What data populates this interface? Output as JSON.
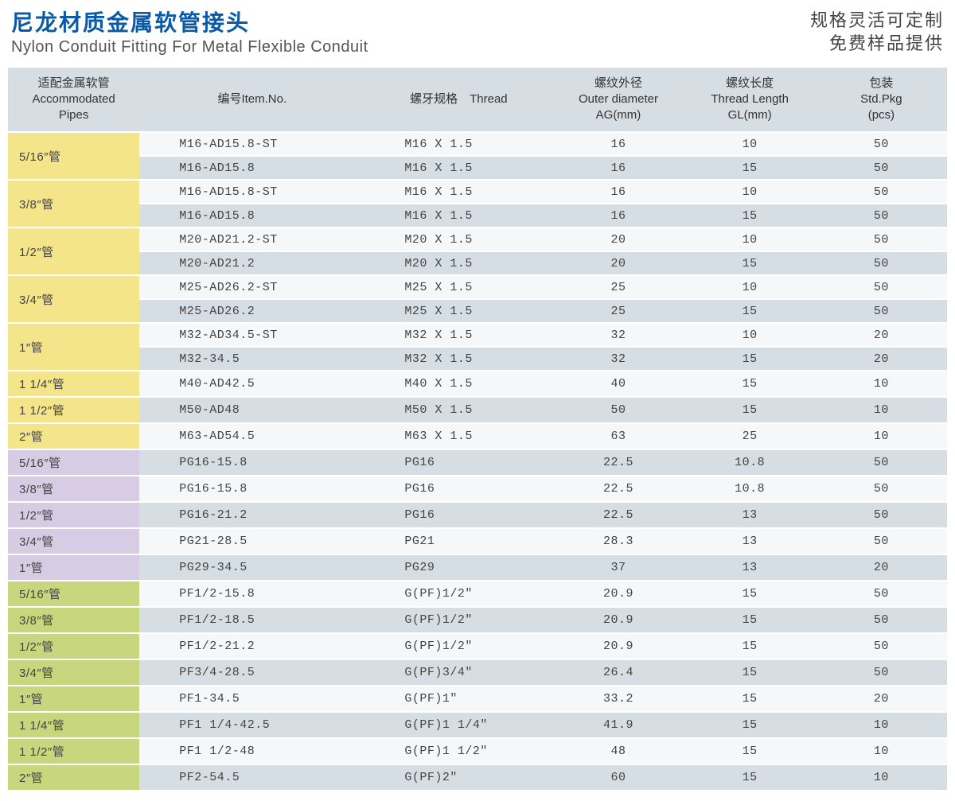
{
  "header": {
    "title_cn": "尼龙材质金属软管接头",
    "title_en": "Nylon Conduit Fitting For Metal Flexible Conduit",
    "promo_line1": "规格灵活可定制",
    "promo_line2": "免费样品提供"
  },
  "colors": {
    "yellow": "#f4e58a",
    "purple": "#d7cce4",
    "green": "#c8d77e",
    "grey_even": "#d6dde3",
    "grey_odd": "#f5f7f8"
  },
  "columns": [
    {
      "cn": "适配金属软管",
      "en": "Accommodated<br>Pipes"
    },
    {
      "cn": "编号Item.No.",
      "en": ""
    },
    {
      "cn": "螺牙规格　Thread",
      "en": ""
    },
    {
      "cn": "螺纹外径",
      "en": "Outer diameter<br>AG(mm)"
    },
    {
      "cn": "螺纹长度",
      "en": "Thread Length<br>GL(mm)"
    },
    {
      "cn": "包装",
      "en": "Std.Pkg<br>(pcs)"
    }
  ],
  "groups": [
    {
      "color": "yellow",
      "pipe": "5/16″管",
      "rows": [
        {
          "item": "M16-AD15.8-ST",
          "thread": "M16 X 1.5",
          "od": "16",
          "tl": "10",
          "pkg": "50"
        },
        {
          "item": "M16-AD15.8",
          "thread": "M16 X 1.5",
          "od": "16",
          "tl": "15",
          "pkg": "50"
        }
      ]
    },
    {
      "color": "yellow",
      "pipe": "3/8″管",
      "rows": [
        {
          "item": "M16-AD15.8-ST",
          "thread": "M16 X 1.5",
          "od": "16",
          "tl": "10",
          "pkg": "50"
        },
        {
          "item": "M16-AD15.8",
          "thread": "M16 X 1.5",
          "od": "16",
          "tl": "15",
          "pkg": "50"
        }
      ]
    },
    {
      "color": "yellow",
      "pipe": "1/2″管",
      "rows": [
        {
          "item": "M20-AD21.2-ST",
          "thread": "M20 X 1.5",
          "od": "20",
          "tl": "10",
          "pkg": "50"
        },
        {
          "item": "M20-AD21.2",
          "thread": "M20 X 1.5",
          "od": "20",
          "tl": "15",
          "pkg": "50"
        }
      ]
    },
    {
      "color": "yellow",
      "pipe": "3/4″管",
      "rows": [
        {
          "item": "M25-AD26.2-ST",
          "thread": "M25 X 1.5",
          "od": "25",
          "tl": "10",
          "pkg": "50"
        },
        {
          "item": "M25-AD26.2",
          "thread": "M25 X 1.5",
          "od": "25",
          "tl": "15",
          "pkg": "50"
        }
      ]
    },
    {
      "color": "yellow",
      "pipe": "1″管",
      "rows": [
        {
          "item": "M32-AD34.5-ST",
          "thread": "M32 X 1.5",
          "od": "32",
          "tl": "10",
          "pkg": "20"
        },
        {
          "item": "M32-34.5",
          "thread": "M32 X 1.5",
          "od": "32",
          "tl": "15",
          "pkg": "20"
        }
      ]
    },
    {
      "color": "yellow",
      "pipe": "1 1/4″管",
      "rows": [
        {
          "item": "M40-AD42.5",
          "thread": "M40 X 1.5",
          "od": "40",
          "tl": "15",
          "pkg": "10"
        }
      ]
    },
    {
      "color": "yellow",
      "pipe": "1 1/2″管",
      "rows": [
        {
          "item": "M50-AD48",
          "thread": "M50 X 1.5",
          "od": "50",
          "tl": "15",
          "pkg": "10"
        }
      ]
    },
    {
      "color": "yellow",
      "pipe": "2″管",
      "rows": [
        {
          "item": "M63-AD54.5",
          "thread": "M63 X 1.5",
          "od": "63",
          "tl": "25",
          "pkg": "10"
        }
      ]
    },
    {
      "color": "purple",
      "pipe": "5/16″管",
      "rows": [
        {
          "item": "PG16-15.8",
          "thread": "PG16",
          "od": "22.5",
          "tl": "10.8",
          "pkg": "50"
        }
      ]
    },
    {
      "color": "purple",
      "pipe": "3/8″管",
      "rows": [
        {
          "item": "PG16-15.8",
          "thread": "PG16",
          "od": "22.5",
          "tl": "10.8",
          "pkg": "50"
        }
      ]
    },
    {
      "color": "purple",
      "pipe": "1/2″管",
      "rows": [
        {
          "item": "PG16-21.2",
          "thread": "PG16",
          "od": "22.5",
          "tl": "13",
          "pkg": "50"
        }
      ]
    },
    {
      "color": "purple",
      "pipe": "3/4″管",
      "rows": [
        {
          "item": "PG21-28.5",
          "thread": "PG21",
          "od": "28.3",
          "tl": "13",
          "pkg": "50"
        }
      ]
    },
    {
      "color": "purple",
      "pipe": "1″管",
      "rows": [
        {
          "item": "PG29-34.5",
          "thread": "PG29",
          "od": "37",
          "tl": "13",
          "pkg": "20"
        }
      ]
    },
    {
      "color": "green",
      "pipe": "5/16″管",
      "rows": [
        {
          "item": "PF1/2-15.8",
          "thread": "G(PF)1/2″",
          "od": "20.9",
          "tl": "15",
          "pkg": "50"
        }
      ]
    },
    {
      "color": "green",
      "pipe": "3/8″管",
      "rows": [
        {
          "item": "PF1/2-18.5",
          "thread": "G(PF)1/2″",
          "od": "20.9",
          "tl": "15",
          "pkg": "50"
        }
      ]
    },
    {
      "color": "green",
      "pipe": "1/2″管",
      "rows": [
        {
          "item": "PF1/2-21.2",
          "thread": "G(PF)1/2″",
          "od": "20.9",
          "tl": "15",
          "pkg": "50"
        }
      ]
    },
    {
      "color": "green",
      "pipe": "3/4″管",
      "rows": [
        {
          "item": "PF3/4-28.5",
          "thread": "G(PF)3/4″",
          "od": "26.4",
          "tl": "15",
          "pkg": "50"
        }
      ]
    },
    {
      "color": "green",
      "pipe": "1″管",
      "rows": [
        {
          "item": "PF1-34.5",
          "thread": "G(PF)1″",
          "od": "33.2",
          "tl": "15",
          "pkg": "20"
        }
      ]
    },
    {
      "color": "green",
      "pipe": "1 1/4″管",
      "rows": [
        {
          "item": "PF1 1/4-42.5",
          "thread": "G(PF)1 1/4″",
          "od": "41.9",
          "tl": "15",
          "pkg": "10"
        }
      ]
    },
    {
      "color": "green",
      "pipe": "1 1/2″管",
      "rows": [
        {
          "item": "PF1 1/2-48",
          "thread": "G(PF)1 1/2″",
          "od": "48",
          "tl": "15",
          "pkg": "10"
        }
      ]
    },
    {
      "color": "green",
      "pipe": "2″管",
      "rows": [
        {
          "item": "PF2-54.5",
          "thread": "G(PF)2″",
          "od": "60",
          "tl": "15",
          "pkg": "10"
        }
      ]
    }
  ]
}
